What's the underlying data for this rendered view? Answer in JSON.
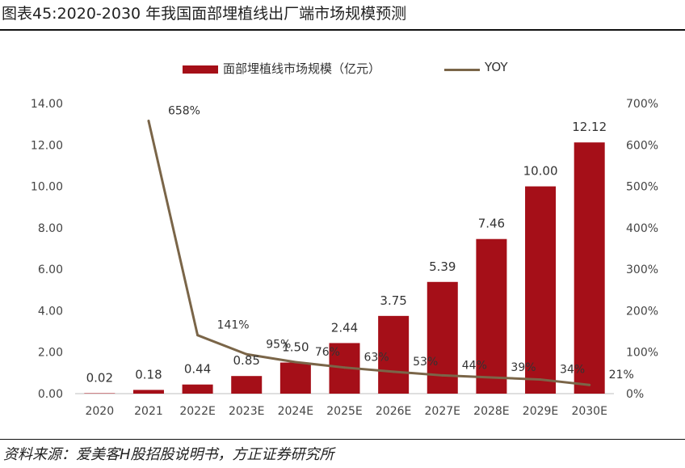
{
  "header": {
    "title": "图表45:2020-2030 年我国面部埋植线出厂端市场规模预测"
  },
  "footer": {
    "source": "资料来源：爱美客H股招股说明书，方正证券研究所"
  },
  "colors": {
    "bar": "#A50F18",
    "line": "#7A6548"
  },
  "chart_data": {
    "type": "bar",
    "categories": [
      "2020",
      "2021",
      "2022E",
      "2023E",
      "2024E",
      "2025E",
      "2026E",
      "2027E",
      "2028E",
      "2029E",
      "2030E"
    ],
    "series": [
      {
        "name": "面部埋植线市场规模（亿元）",
        "type": "bar",
        "axis": "left",
        "values": [
          0.02,
          0.18,
          0.44,
          0.85,
          1.5,
          2.44,
          3.75,
          5.39,
          7.46,
          10.0,
          12.12
        ],
        "labels": [
          "0.02",
          "0.18",
          "0.44",
          "0.85",
          "1.50",
          "2.44",
          "3.75",
          "5.39",
          "7.46",
          "10.00",
          "12.12"
        ]
      },
      {
        "name": "YOY",
        "type": "line",
        "axis": "right",
        "values": [
          null,
          658,
          141,
          95,
          76,
          63,
          53,
          44,
          39,
          34,
          21
        ],
        "labels": [
          "",
          "658%",
          "141%",
          "95%",
          "76%",
          "63%",
          "53%",
          "44%",
          "39%",
          "34%",
          "21%"
        ]
      }
    ],
    "y_left": {
      "min": 0,
      "max": 14,
      "ticks": [
        "0.00",
        "2.00",
        "4.00",
        "6.00",
        "8.00",
        "10.00",
        "12.00",
        "14.00"
      ],
      "tick_values": [
        0,
        2,
        4,
        6,
        8,
        10,
        12,
        14
      ]
    },
    "y_right": {
      "min": 0,
      "max": 700,
      "ticks": [
        "0%",
        "100%",
        "200%",
        "300%",
        "400%",
        "500%",
        "600%",
        "700%"
      ],
      "tick_values": [
        0,
        100,
        200,
        300,
        400,
        500,
        600,
        700
      ]
    },
    "grid": false,
    "legend": "top-center"
  }
}
